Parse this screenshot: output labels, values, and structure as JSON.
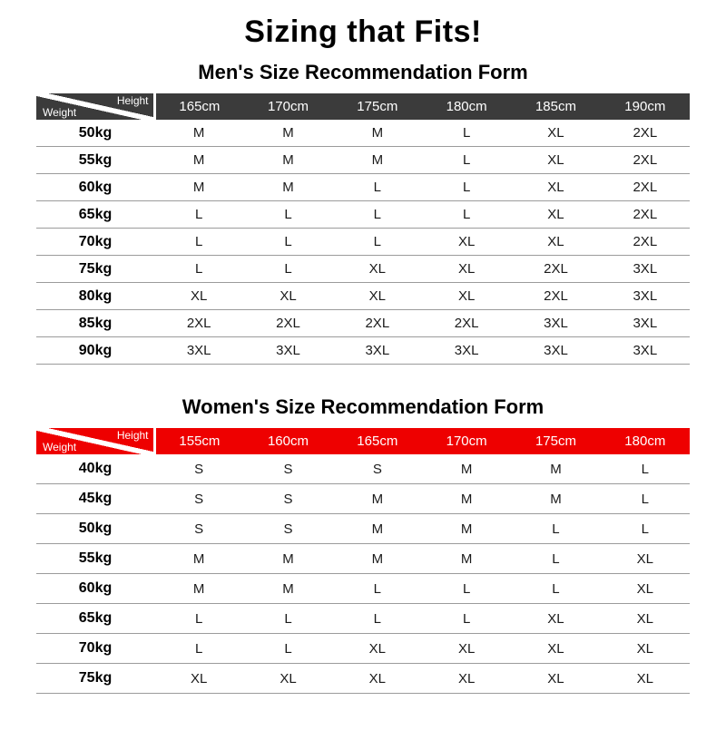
{
  "page": {
    "title": "Sizing that Fits!"
  },
  "chart_data": [
    {
      "type": "table",
      "title": "Men's Size Recommendation Form",
      "corner_top": "Height",
      "corner_bottom": "Weight",
      "header_color": "#3b3b3b",
      "columns": [
        "165cm",
        "170cm",
        "175cm",
        "180cm",
        "185cm",
        "190cm"
      ],
      "rows": [
        {
          "weight": "50kg",
          "sizes": [
            "M",
            "M",
            "M",
            "L",
            "XL",
            "2XL"
          ]
        },
        {
          "weight": "55kg",
          "sizes": [
            "M",
            "M",
            "M",
            "L",
            "XL",
            "2XL"
          ]
        },
        {
          "weight": "60kg",
          "sizes": [
            "M",
            "M",
            "L",
            "L",
            "XL",
            "2XL"
          ]
        },
        {
          "weight": "65kg",
          "sizes": [
            "L",
            "L",
            "L",
            "L",
            "XL",
            "2XL"
          ]
        },
        {
          "weight": "70kg",
          "sizes": [
            "L",
            "L",
            "L",
            "XL",
            "XL",
            "2XL"
          ]
        },
        {
          "weight": "75kg",
          "sizes": [
            "L",
            "L",
            "XL",
            "XL",
            "2XL",
            "3XL"
          ]
        },
        {
          "weight": "80kg",
          "sizes": [
            "XL",
            "XL",
            "XL",
            "XL",
            "2XL",
            "3XL"
          ]
        },
        {
          "weight": "85kg",
          "sizes": [
            "2XL",
            "2XL",
            "2XL",
            "2XL",
            "3XL",
            "3XL"
          ]
        },
        {
          "weight": "90kg",
          "sizes": [
            "3XL",
            "3XL",
            "3XL",
            "3XL",
            "3XL",
            "3XL"
          ]
        }
      ]
    },
    {
      "type": "table",
      "title": "Women's Size Recommendation Form",
      "corner_top": "Height",
      "corner_bottom": "Weight",
      "header_color": "#ee0000",
      "columns": [
        "155cm",
        "160cm",
        "165cm",
        "170cm",
        "175cm",
        "180cm"
      ],
      "rows": [
        {
          "weight": "40kg",
          "sizes": [
            "S",
            "S",
            "S",
            "M",
            "M",
            "L"
          ]
        },
        {
          "weight": "45kg",
          "sizes": [
            "S",
            "S",
            "M",
            "M",
            "M",
            "L"
          ]
        },
        {
          "weight": "50kg",
          "sizes": [
            "S",
            "S",
            "M",
            "M",
            "L",
            "L"
          ]
        },
        {
          "weight": "55kg",
          "sizes": [
            "M",
            "M",
            "M",
            "M",
            "L",
            "XL"
          ]
        },
        {
          "weight": "60kg",
          "sizes": [
            "M",
            "M",
            "L",
            "L",
            "L",
            "XL"
          ]
        },
        {
          "weight": "65kg",
          "sizes": [
            "L",
            "L",
            "L",
            "L",
            "XL",
            "XL"
          ]
        },
        {
          "weight": "70kg",
          "sizes": [
            "L",
            "L",
            "XL",
            "XL",
            "XL",
            "XL"
          ]
        },
        {
          "weight": "75kg",
          "sizes": [
            "XL",
            "XL",
            "XL",
            "XL",
            "XL",
            "XL"
          ]
        }
      ]
    }
  ]
}
